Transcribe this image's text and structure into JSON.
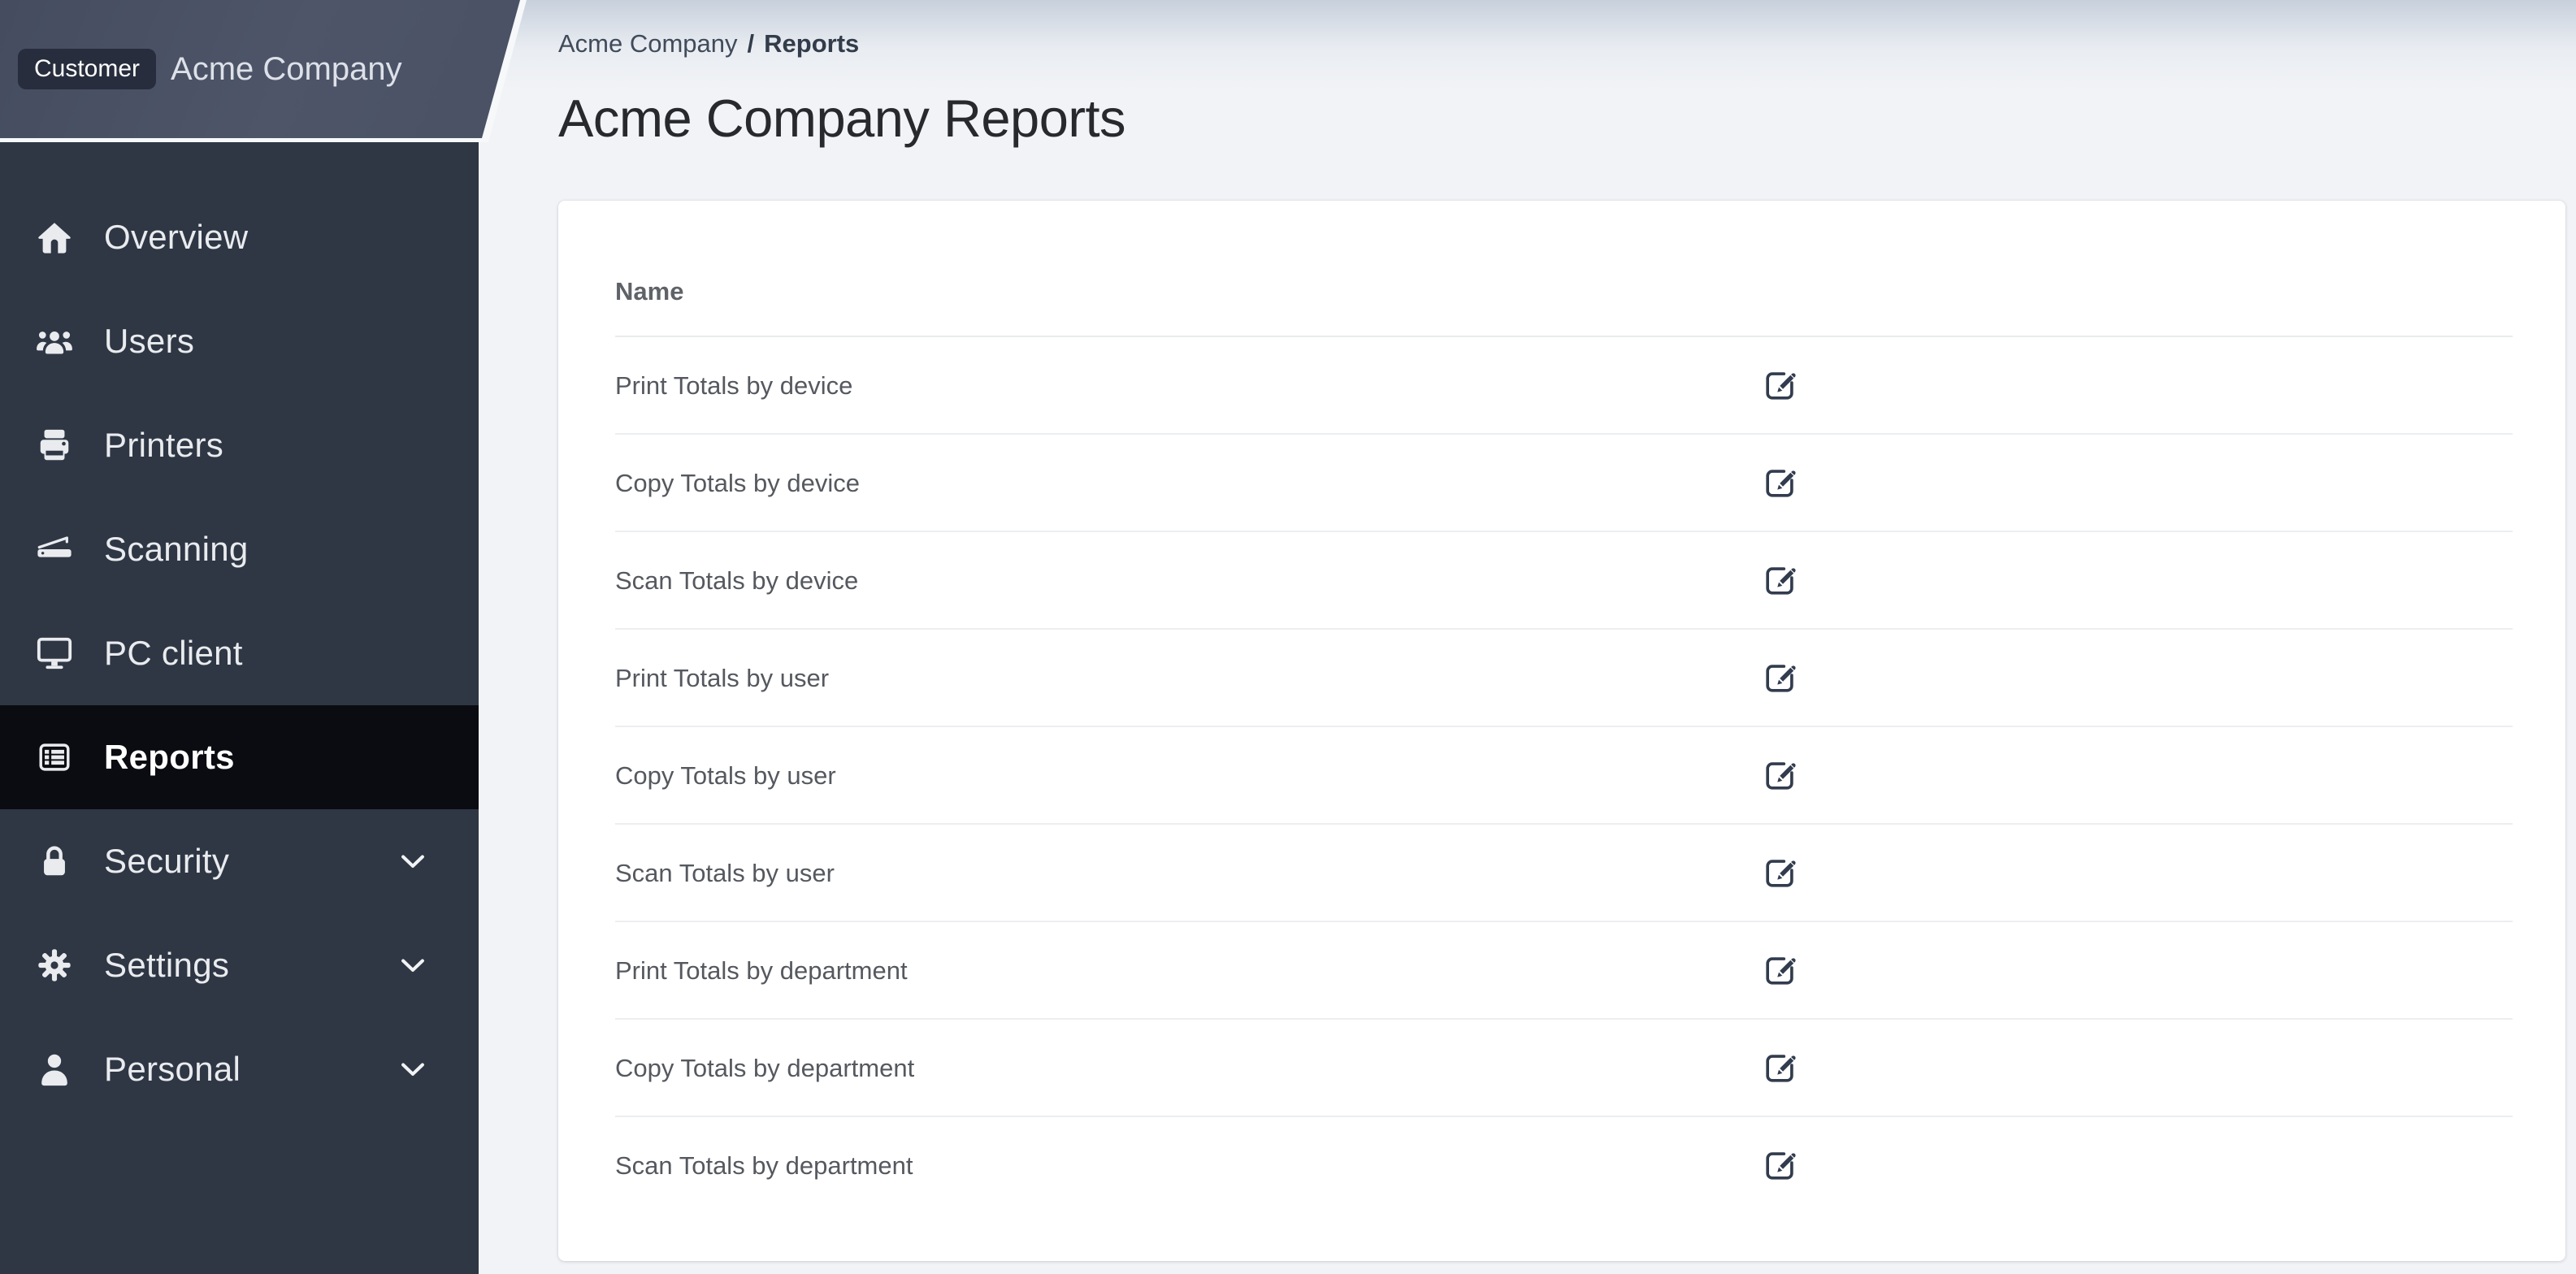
{
  "sidebar": {
    "customer_badge": "Customer",
    "company_name": "Acme Company",
    "items": [
      {
        "label": "Overview",
        "icon": "home-icon",
        "active": false,
        "expandable": false
      },
      {
        "label": "Users",
        "icon": "users-icon",
        "active": false,
        "expandable": false
      },
      {
        "label": "Printers",
        "icon": "printer-icon",
        "active": false,
        "expandable": false
      },
      {
        "label": "Scanning",
        "icon": "scanner-icon",
        "active": false,
        "expandable": false
      },
      {
        "label": "PC client",
        "icon": "desktop-icon",
        "active": false,
        "expandable": false
      },
      {
        "label": "Reports",
        "icon": "table-list-icon",
        "active": true,
        "expandable": false
      },
      {
        "label": "Security",
        "icon": "lock-icon",
        "active": false,
        "expandable": true
      },
      {
        "label": "Settings",
        "icon": "gear-icon",
        "active": false,
        "expandable": true
      },
      {
        "label": "Personal",
        "icon": "user-icon",
        "active": false,
        "expandable": true
      }
    ]
  },
  "breadcrumb": {
    "parent": "Acme Company",
    "separator": "/",
    "current": "Reports"
  },
  "page": {
    "title": "Acme Company Reports"
  },
  "reports_table": {
    "columns": {
      "name": "Name"
    },
    "row_action_icon": "edit-icon",
    "rows": [
      {
        "name": "Print Totals by device"
      },
      {
        "name": "Copy Totals by device"
      },
      {
        "name": "Scan Totals by device"
      },
      {
        "name": "Print Totals by user"
      },
      {
        "name": "Copy Totals by user"
      },
      {
        "name": "Scan Totals by user"
      },
      {
        "name": "Print Totals by department"
      },
      {
        "name": "Copy Totals by department"
      },
      {
        "name": "Scan Totals by department"
      }
    ]
  },
  "colors": {
    "sidebar_bg": "#2f3745",
    "sidebar_header_bg": "#4b5267",
    "sidebar_active_bg": "#0a0c11",
    "badge_bg": "#272d3c",
    "page_bg": "#f1f3f6",
    "page_gradient_top": "#c8d0dc",
    "card_bg": "#ffffff",
    "divider": "#e9ebed",
    "edit_icon": "#323c4e",
    "sidebar_text": "#e9ebee"
  }
}
